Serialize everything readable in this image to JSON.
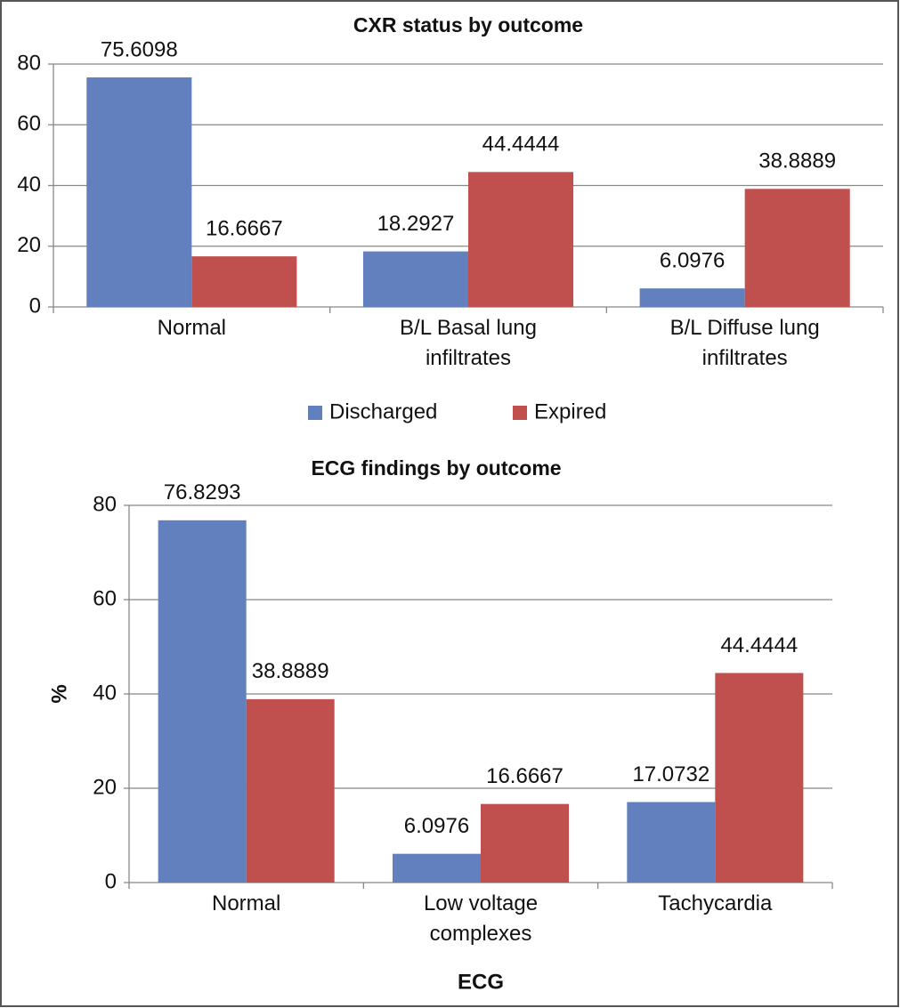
{
  "chart_data": [
    {
      "type": "bar",
      "title": "CXR status by outcome",
      "categories": [
        "Normal",
        "B/L Basal lung infiltrates",
        "B/L Diffuse lung infiltrates"
      ],
      "series": [
        {
          "name": "Discharged",
          "color": "#6180bd",
          "values": [
            75.6098,
            18.2927,
            6.0976
          ]
        },
        {
          "name": "Expired",
          "color": "#c0504d",
          "values": [
            16.6667,
            44.4444,
            38.8889
          ]
        }
      ],
      "ylim": [
        0,
        80
      ],
      "yticks": [
        0,
        20,
        40,
        60,
        80
      ],
      "grid": true,
      "legend": "bottom"
    },
    {
      "type": "bar",
      "title": "ECG findings by outcome",
      "xlabel": "ECG",
      "ylabel": "%",
      "categories": [
        "Normal",
        "Low voltage complexes",
        "Tachycardia"
      ],
      "series": [
        {
          "color": "#6180bd",
          "values": [
            76.8293,
            6.0976,
            17.0732
          ]
        },
        {
          "color": "#c0504d",
          "values": [
            38.8889,
            16.6667,
            44.4444
          ]
        }
      ],
      "ylim": [
        0,
        80
      ],
      "yticks": [
        0,
        20,
        40,
        60,
        80
      ],
      "grid": true
    }
  ]
}
